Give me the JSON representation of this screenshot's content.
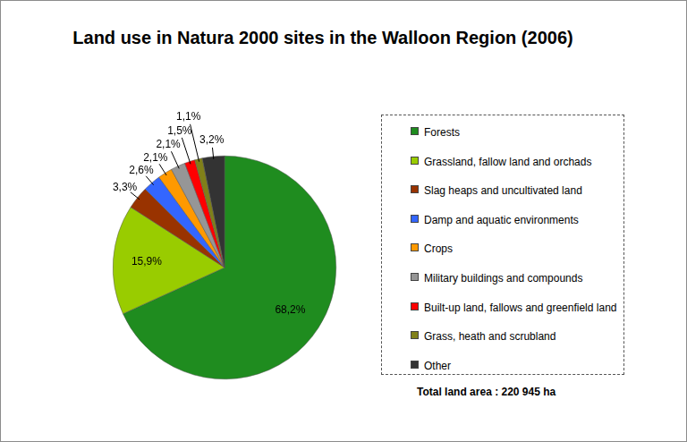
{
  "chart_data": {
    "type": "pie",
    "title": "Land use in Natura 2000 sites in the Walloon Region (2006)",
    "categories": [
      "Forests",
      "Grassland, fallow land and orchads",
      "Slag heaps and uncultivated land",
      "Damp and aquatic environments",
      "Crops",
      "Military buildings and compounds",
      "Built-up land, fallows and greenfield land",
      "Grass, heath and scrubland",
      "Other"
    ],
    "values": [
      68.2,
      15.9,
      3.3,
      2.6,
      2.1,
      2.1,
      1.5,
      1.1,
      3.2
    ],
    "value_labels": [
      "68,2%",
      "15,9%",
      "3,3%",
      "2,6%",
      "2,1%",
      "2,1%",
      "1,5%",
      "1,1%",
      "3,2%"
    ],
    "colors": [
      "#1f8c1f",
      "#99cc00",
      "#993300",
      "#3366ff",
      "#ff9900",
      "#969696",
      "#ff0000",
      "#808019",
      "#333333"
    ],
    "data_labels": true,
    "legend": "right",
    "annotations": [
      "Total land area : 220 945 ha"
    ]
  }
}
